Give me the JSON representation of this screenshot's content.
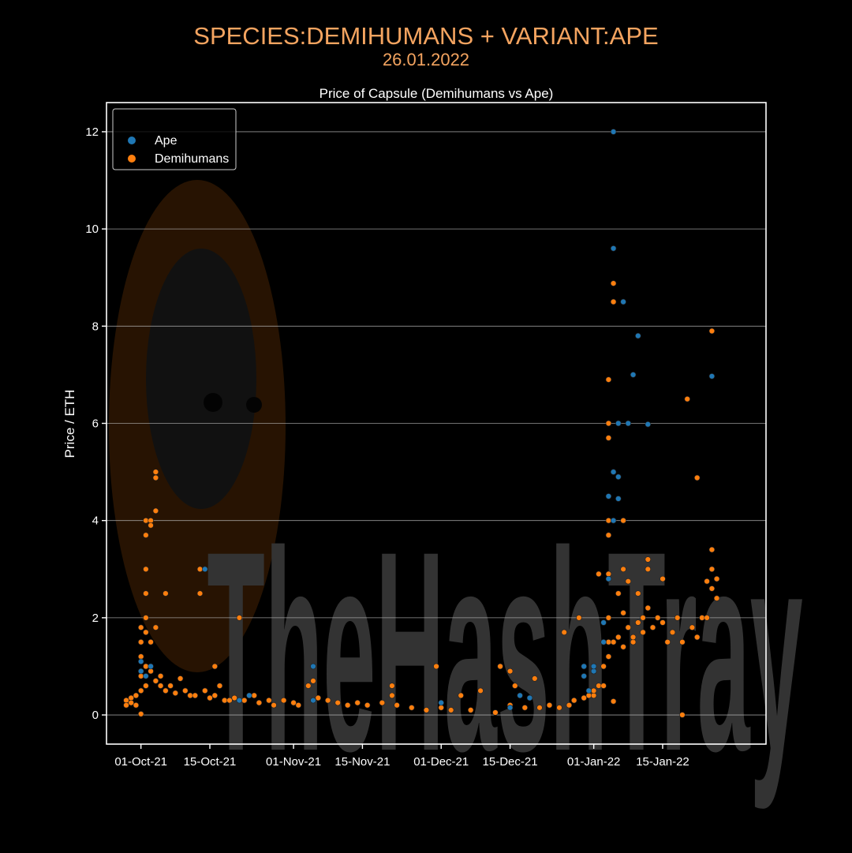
{
  "header": {
    "title": "SPECIES:DEMIHUMANS + VARIANT:APE",
    "date": "26.01.2022"
  },
  "watermark": "TheHashTray",
  "chart_data": {
    "type": "scatter",
    "title": "Price of Capsule (Demihumans vs Ape)",
    "xlabel": "",
    "ylabel": "Price / ETH",
    "x_type": "date",
    "xlim": [
      "2021-09-24",
      "2022-02-05"
    ],
    "ylim": [
      -0.6,
      12.6
    ],
    "x_ticks": [
      {
        "date": "2021-10-01",
        "label": "01-Oct-21"
      },
      {
        "date": "2021-10-15",
        "label": "15-Oct-21"
      },
      {
        "date": "2021-11-01",
        "label": "01-Nov-21"
      },
      {
        "date": "2021-11-15",
        "label": "15-Nov-21"
      },
      {
        "date": "2021-12-01",
        "label": "01-Dec-21"
      },
      {
        "date": "2021-12-15",
        "label": "15-Dec-21"
      },
      {
        "date": "2022-01-01",
        "label": "01-Jan-22"
      },
      {
        "date": "2022-01-15",
        "label": "15-Jan-22"
      }
    ],
    "y_ticks": [
      0,
      2,
      4,
      6,
      8,
      10,
      12
    ],
    "grid": "horizontal",
    "legend_position": "top-left",
    "series": [
      {
        "name": "Ape",
        "color": "#1f77b4",
        "points": [
          [
            "2021-10-01",
            0.9
          ],
          [
            "2021-10-01",
            1.1
          ],
          [
            "2021-10-02",
            0.8
          ],
          [
            "2021-10-03",
            1.0
          ],
          [
            "2021-10-14",
            3.0
          ],
          [
            "2021-10-21",
            0.3
          ],
          [
            "2021-10-23",
            0.4
          ],
          [
            "2021-11-05",
            0.3
          ],
          [
            "2021-11-05",
            1.0
          ],
          [
            "2021-12-01",
            0.25
          ],
          [
            "2021-12-15",
            0.15
          ],
          [
            "2021-12-17",
            0.4
          ],
          [
            "2021-12-19",
            0.35
          ],
          [
            "2021-12-30",
            1.0
          ],
          [
            "2021-12-30",
            0.8
          ],
          [
            "2021-12-31",
            0.5
          ],
          [
            "2022-01-01",
            0.9
          ],
          [
            "2022-01-01",
            1.0
          ],
          [
            "2022-01-03",
            1.9
          ],
          [
            "2022-01-03",
            1.5
          ],
          [
            "2022-01-04",
            4.5
          ],
          [
            "2022-01-04",
            2.8
          ],
          [
            "2022-01-05",
            12.0
          ],
          [
            "2022-01-05",
            9.6
          ],
          [
            "2022-01-05",
            5.0
          ],
          [
            "2022-01-05",
            4.0
          ],
          [
            "2022-01-06",
            4.9
          ],
          [
            "2022-01-06",
            4.45
          ],
          [
            "2022-01-06",
            6.0
          ],
          [
            "2022-01-07",
            8.5
          ],
          [
            "2022-01-08",
            6.0
          ],
          [
            "2022-01-09",
            7.0
          ],
          [
            "2022-01-10",
            7.8
          ],
          [
            "2022-01-12",
            5.98
          ],
          [
            "2022-01-25",
            6.97
          ]
        ]
      },
      {
        "name": "Demihumans",
        "color": "#ff7f0e",
        "points": [
          [
            "2021-09-28",
            0.3
          ],
          [
            "2021-09-28",
            0.2
          ],
          [
            "2021-09-29",
            0.35
          ],
          [
            "2021-09-29",
            0.25
          ],
          [
            "2021-09-30",
            0.4
          ],
          [
            "2021-09-30",
            0.2
          ],
          [
            "2021-10-01",
            0.5
          ],
          [
            "2021-10-01",
            0.02
          ],
          [
            "2021-10-01",
            1.5
          ],
          [
            "2021-10-01",
            1.8
          ],
          [
            "2021-10-01",
            1.2
          ],
          [
            "2021-10-01",
            0.8
          ],
          [
            "2021-10-02",
            2.0
          ],
          [
            "2021-10-02",
            2.5
          ],
          [
            "2021-10-02",
            3.0
          ],
          [
            "2021-10-02",
            3.7
          ],
          [
            "2021-10-02",
            4.0
          ],
          [
            "2021-10-02",
            1.7
          ],
          [
            "2021-10-02",
            1.0
          ],
          [
            "2021-10-02",
            0.6
          ],
          [
            "2021-10-03",
            4.0
          ],
          [
            "2021-10-03",
            3.9
          ],
          [
            "2021-10-03",
            1.5
          ],
          [
            "2021-10-03",
            0.9
          ],
          [
            "2021-10-04",
            5.0
          ],
          [
            "2021-10-04",
            4.88
          ],
          [
            "2021-10-04",
            4.2
          ],
          [
            "2021-10-04",
            1.8
          ],
          [
            "2021-10-04",
            0.7
          ],
          [
            "2021-10-05",
            0.8
          ],
          [
            "2021-10-05",
            0.6
          ],
          [
            "2021-10-06",
            2.5
          ],
          [
            "2021-10-06",
            0.5
          ],
          [
            "2021-10-07",
            0.6
          ],
          [
            "2021-10-08",
            0.45
          ],
          [
            "2021-10-09",
            0.75
          ],
          [
            "2021-10-10",
            0.5
          ],
          [
            "2021-10-11",
            0.4
          ],
          [
            "2021-10-12",
            0.4
          ],
          [
            "2021-10-13",
            3.0
          ],
          [
            "2021-10-13",
            2.5
          ],
          [
            "2021-10-14",
            0.5
          ],
          [
            "2021-10-15",
            0.35
          ],
          [
            "2021-10-16",
            0.4
          ],
          [
            "2021-10-16",
            1.0
          ],
          [
            "2021-10-17",
            0.6
          ],
          [
            "2021-10-18",
            0.3
          ],
          [
            "2021-10-19",
            0.3
          ],
          [
            "2021-10-20",
            0.35
          ],
          [
            "2021-10-21",
            2.0
          ],
          [
            "2021-10-22",
            0.3
          ],
          [
            "2021-10-24",
            0.4
          ],
          [
            "2021-10-25",
            0.25
          ],
          [
            "2021-10-27",
            0.3
          ],
          [
            "2021-10-28",
            0.2
          ],
          [
            "2021-10-30",
            0.3
          ],
          [
            "2021-11-01",
            0.25
          ],
          [
            "2021-11-02",
            0.2
          ],
          [
            "2021-11-04",
            0.6
          ],
          [
            "2021-11-05",
            0.7
          ],
          [
            "2021-11-06",
            0.35
          ],
          [
            "2021-11-08",
            0.3
          ],
          [
            "2021-11-10",
            0.25
          ],
          [
            "2021-11-12",
            0.2
          ],
          [
            "2021-11-14",
            0.25
          ],
          [
            "2021-11-16",
            0.2
          ],
          [
            "2021-11-19",
            0.25
          ],
          [
            "2021-11-21",
            0.6
          ],
          [
            "2021-11-21",
            0.4
          ],
          [
            "2021-11-22",
            0.2
          ],
          [
            "2021-11-25",
            0.15
          ],
          [
            "2021-11-28",
            0.1
          ],
          [
            "2021-11-30",
            1.0
          ],
          [
            "2021-12-01",
            0.15
          ],
          [
            "2021-12-03",
            0.1
          ],
          [
            "2021-12-05",
            0.4
          ],
          [
            "2021-12-07",
            0.1
          ],
          [
            "2021-12-09",
            0.5
          ],
          [
            "2021-12-12",
            0.05
          ],
          [
            "2021-12-13",
            1.0
          ],
          [
            "2021-12-15",
            0.9
          ],
          [
            "2021-12-15",
            0.2
          ],
          [
            "2021-12-16",
            0.6
          ],
          [
            "2021-12-18",
            0.15
          ],
          [
            "2021-12-20",
            0.75
          ],
          [
            "2021-12-21",
            0.15
          ],
          [
            "2021-12-23",
            0.2
          ],
          [
            "2021-12-25",
            0.15
          ],
          [
            "2021-12-26",
            1.7
          ],
          [
            "2021-12-27",
            0.2
          ],
          [
            "2021-12-28",
            0.3
          ],
          [
            "2021-12-29",
            2.0
          ],
          [
            "2021-12-30",
            0.35
          ],
          [
            "2021-12-31",
            0.4
          ],
          [
            "2022-01-01",
            0.4
          ],
          [
            "2022-01-01",
            0.5
          ],
          [
            "2022-01-02",
            2.9
          ],
          [
            "2022-01-02",
            0.6
          ],
          [
            "2022-01-03",
            0.6
          ],
          [
            "2022-01-03",
            1.0
          ],
          [
            "2022-01-04",
            6.0
          ],
          [
            "2022-01-04",
            5.7
          ],
          [
            "2022-01-04",
            4.0
          ],
          [
            "2022-01-04",
            3.7
          ],
          [
            "2022-01-04",
            2.9
          ],
          [
            "2022-01-04",
            2.0
          ],
          [
            "2022-01-04",
            1.5
          ],
          [
            "2022-01-04",
            1.2
          ],
          [
            "2022-01-04",
            6.9
          ],
          [
            "2022-01-05",
            8.88
          ],
          [
            "2022-01-05",
            8.5
          ],
          [
            "2022-01-05",
            1.5
          ],
          [
            "2022-01-05",
            0.28
          ],
          [
            "2022-01-06",
            1.6
          ],
          [
            "2022-01-06",
            2.5
          ],
          [
            "2022-01-07",
            4.0
          ],
          [
            "2022-01-07",
            3.0
          ],
          [
            "2022-01-07",
            2.1
          ],
          [
            "2022-01-07",
            1.4
          ],
          [
            "2022-01-08",
            2.75
          ],
          [
            "2022-01-08",
            1.8
          ],
          [
            "2022-01-09",
            1.5
          ],
          [
            "2022-01-09",
            1.6
          ],
          [
            "2022-01-10",
            2.5
          ],
          [
            "2022-01-10",
            1.9
          ],
          [
            "2022-01-11",
            1.7
          ],
          [
            "2022-01-11",
            2.0
          ],
          [
            "2022-01-12",
            3.2
          ],
          [
            "2022-01-12",
            3.0
          ],
          [
            "2022-01-12",
            2.2
          ],
          [
            "2022-01-13",
            1.8
          ],
          [
            "2022-01-14",
            2.0
          ],
          [
            "2022-01-15",
            2.8
          ],
          [
            "2022-01-15",
            1.9
          ],
          [
            "2022-01-16",
            1.5
          ],
          [
            "2022-01-17",
            1.7
          ],
          [
            "2022-01-18",
            2.0
          ],
          [
            "2022-01-19",
            0.0
          ],
          [
            "2022-01-19",
            1.5
          ],
          [
            "2022-01-20",
            6.5
          ],
          [
            "2022-01-21",
            1.8
          ],
          [
            "2022-01-22",
            4.88
          ],
          [
            "2022-01-22",
            1.6
          ],
          [
            "2022-01-23",
            2.0
          ],
          [
            "2022-01-24",
            2.75
          ],
          [
            "2022-01-24",
            2.0
          ],
          [
            "2022-01-25",
            7.9
          ],
          [
            "2022-01-25",
            3.4
          ],
          [
            "2022-01-25",
            3.0
          ],
          [
            "2022-01-25",
            2.6
          ],
          [
            "2022-01-26",
            2.8
          ],
          [
            "2022-01-26",
            2.4
          ]
        ]
      }
    ]
  }
}
